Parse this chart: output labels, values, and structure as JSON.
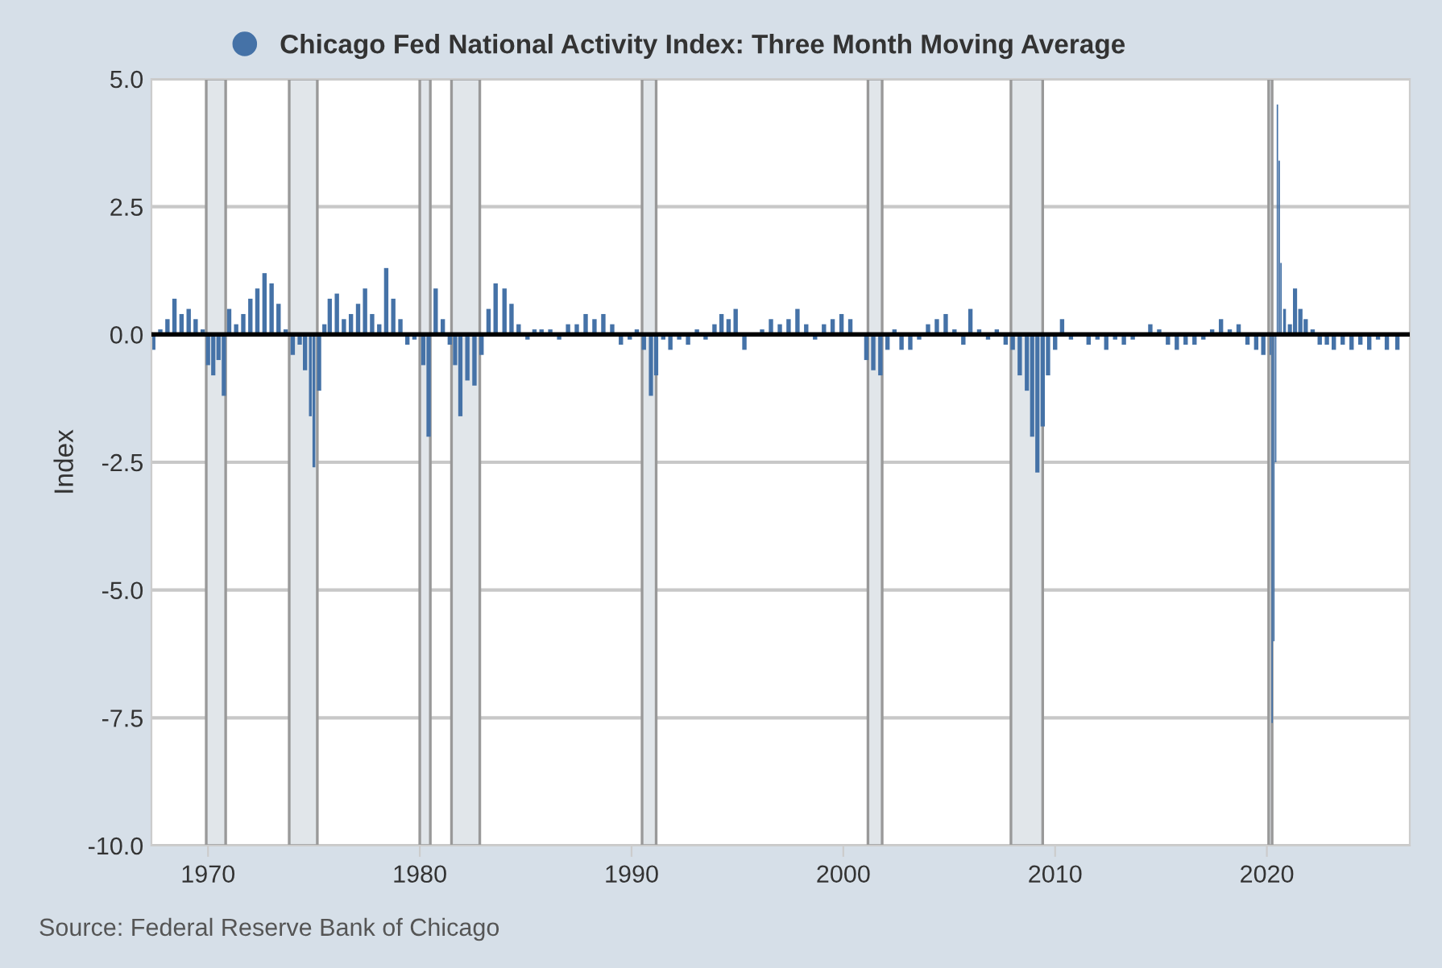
{
  "chart_data": {
    "type": "bar",
    "ylabel": "Index",
    "annotations": [
      "Source: Federal Reserve Bank of Chicago"
    ],
    "x": [
      "1967-06",
      "1967-10",
      "1968-02",
      "1968-06",
      "1968-10",
      "1969-02",
      "1969-06",
      "1969-10",
      "1970-01",
      "1970-04",
      "1970-07",
      "1970-10",
      "1971-01",
      "1971-05",
      "1971-09",
      "1972-01",
      "1972-05",
      "1972-09",
      "1973-01",
      "1973-05",
      "1973-09",
      "1974-01",
      "1974-05",
      "1974-08",
      "1974-11",
      "1975-01",
      "1975-04",
      "1975-07",
      "1975-10",
      "1976-02",
      "1976-06",
      "1976-10",
      "1977-02",
      "1977-06",
      "1977-10",
      "1978-02",
      "1978-06",
      "1978-10",
      "1979-02",
      "1979-06",
      "1979-10",
      "1980-03",
      "1980-06",
      "1980-10",
      "1981-02",
      "1981-06",
      "1981-09",
      "1981-12",
      "1982-04",
      "1982-08",
      "1982-12",
      "1983-04",
      "1983-08",
      "1984-01",
      "1984-05",
      "1984-09",
      "1985-02",
      "1985-06",
      "1985-10",
      "1986-03",
      "1986-08",
      "1987-01",
      "1987-06",
      "1987-11",
      "1988-04",
      "1988-09",
      "1989-02",
      "1989-07",
      "1989-12",
      "1990-04",
      "1990-08",
      "1990-12",
      "1991-03",
      "1991-07",
      "1991-11",
      "1992-04",
      "1992-09",
      "1993-02",
      "1993-07",
      "1993-12",
      "1994-04",
      "1994-08",
      "1994-12",
      "1995-05",
      "1995-10",
      "1996-03",
      "1996-08",
      "1997-01",
      "1997-06",
      "1997-11",
      "1998-04",
      "1998-09",
      "1999-02",
      "1999-07",
      "1999-12",
      "2000-05",
      "2000-10",
      "2001-02",
      "2001-06",
      "2001-10",
      "2002-02",
      "2002-06",
      "2002-10",
      "2003-03",
      "2003-08",
      "2004-01",
      "2004-06",
      "2004-11",
      "2005-04",
      "2005-09",
      "2006-01",
      "2006-06",
      "2006-11",
      "2007-04",
      "2007-09",
      "2008-01",
      "2008-05",
      "2008-09",
      "2008-12",
      "2009-03",
      "2009-06",
      "2009-09",
      "2010-01",
      "2010-05",
      "2010-10",
      "2011-03",
      "2011-08",
      "2012-01",
      "2012-06",
      "2012-11",
      "2013-04",
      "2013-09",
      "2014-02",
      "2014-07",
      "2014-12",
      "2015-05",
      "2015-10",
      "2016-03",
      "2016-08",
      "2017-01",
      "2017-06",
      "2017-11",
      "2018-04",
      "2018-09",
      "2019-02",
      "2019-07",
      "2019-11",
      "2020-03",
      "2020-04",
      "2020-05",
      "2020-06",
      "2020-07",
      "2020-08",
      "2020-09",
      "2020-11",
      "2021-02",
      "2021-05",
      "2021-08",
      "2021-11",
      "2022-03",
      "2022-07",
      "2022-11",
      "2023-03",
      "2023-08",
      "2024-01",
      "2024-06",
      "2024-11",
      "2025-04",
      "2025-09",
      "2026-03"
    ],
    "series": [
      {
        "name": "Chicago Fed National Activity Index: Three Month Moving Average",
        "color": "#4572a7",
        "values": [
          -0.3,
          0.1,
          0.3,
          0.7,
          0.4,
          0.5,
          0.3,
          0.1,
          -0.6,
          -0.8,
          -0.5,
          -1.2,
          0.5,
          0.2,
          0.4,
          0.7,
          0.9,
          1.2,
          1.0,
          0.6,
          0.1,
          -0.4,
          -0.2,
          -0.7,
          -1.6,
          -2.6,
          -1.1,
          0.2,
          0.7,
          0.8,
          0.3,
          0.4,
          0.6,
          0.9,
          0.4,
          0.2,
          1.3,
          0.7,
          0.3,
          -0.2,
          -0.1,
          -0.6,
          -2.0,
          0.9,
          0.3,
          -0.2,
          -0.6,
          -1.6,
          -0.9,
          -1.0,
          -0.4,
          0.5,
          1.0,
          0.9,
          0.6,
          0.2,
          -0.1,
          0.1,
          0.1,
          0.1,
          -0.1,
          0.2,
          0.2,
          0.4,
          0.3,
          0.4,
          0.2,
          -0.2,
          -0.1,
          0.1,
          -0.3,
          -1.2,
          -0.8,
          -0.1,
          -0.3,
          -0.1,
          -0.2,
          0.1,
          -0.1,
          0.2,
          0.4,
          0.3,
          0.5,
          -0.3,
          0.0,
          0.1,
          0.3,
          0.2,
          0.3,
          0.5,
          0.2,
          -0.1,
          0.2,
          0.3,
          0.4,
          0.3,
          0.0,
          -0.5,
          -0.7,
          -0.8,
          -0.3,
          0.1,
          -0.3,
          -0.3,
          -0.1,
          0.2,
          0.3,
          0.4,
          0.1,
          -0.2,
          0.5,
          0.1,
          -0.1,
          0.1,
          -0.2,
          -0.3,
          -0.8,
          -1.1,
          -2.0,
          -2.7,
          -1.8,
          -0.8,
          -0.3,
          0.3,
          -0.1,
          0.0,
          -0.2,
          -0.1,
          -0.3,
          -0.1,
          -0.2,
          -0.1,
          0.0,
          0.2,
          0.1,
          -0.2,
          -0.3,
          -0.2,
          -0.2,
          -0.1,
          0.1,
          0.3,
          0.1,
          0.2,
          -0.2,
          -0.3,
          -0.4,
          -0.4,
          -7.6,
          -6.0,
          -2.5,
          4.5,
          3.4,
          1.4,
          0.5,
          0.2,
          0.9,
          0.5,
          0.3,
          0.1,
          -0.2,
          -0.2,
          -0.3,
          -0.2,
          -0.3,
          -0.2,
          -0.3,
          -0.1,
          -0.3,
          -0.3
        ]
      }
    ],
    "xlim": [
      "1967-05",
      "2026-10"
    ],
    "xticks": [
      {
        "value": "1970",
        "label": "1970"
      },
      {
        "value": "1980",
        "label": "1980"
      },
      {
        "value": "1990",
        "label": "1990"
      },
      {
        "value": "2000",
        "label": "2000"
      },
      {
        "value": "2010",
        "label": "2010"
      },
      {
        "value": "2020",
        "label": "2020"
      }
    ],
    "ylim": [
      -10,
      5
    ],
    "yticks": [
      {
        "value": -10,
        "label": "-10.0"
      },
      {
        "value": -7.5,
        "label": "-7.5"
      },
      {
        "value": -5,
        "label": "-5.0"
      },
      {
        "value": -2.5,
        "label": "-2.5"
      },
      {
        "value": 0,
        "label": "0.0"
      },
      {
        "value": 2.5,
        "label": "2.5"
      },
      {
        "value": 5,
        "label": "5.0"
      }
    ],
    "ref_lines": [
      {
        "axis": "y",
        "value": 0,
        "color": "#000000"
      }
    ],
    "bands": [
      {
        "axis": "x",
        "from": "1969-12",
        "to": "1970-11",
        "color": "#e1e6ea"
      },
      {
        "axis": "x",
        "from": "1973-11",
        "to": "1975-03",
        "color": "#e1e6ea"
      },
      {
        "axis": "x",
        "from": "1980-01",
        "to": "1980-07",
        "color": "#e1e6ea"
      },
      {
        "axis": "x",
        "from": "1981-07",
        "to": "1982-11",
        "color": "#e1e6ea"
      },
      {
        "axis": "x",
        "from": "1990-07",
        "to": "1991-03",
        "color": "#e1e6ea"
      },
      {
        "axis": "x",
        "from": "2001-03",
        "to": "2001-11",
        "color": "#e1e6ea"
      },
      {
        "axis": "x",
        "from": "2007-12",
        "to": "2009-06",
        "color": "#e1e6ea"
      },
      {
        "axis": "x",
        "from": "2020-02",
        "to": "2020-04",
        "color": "#e1e6ea"
      }
    ],
    "grid": "y",
    "legend": "top"
  }
}
